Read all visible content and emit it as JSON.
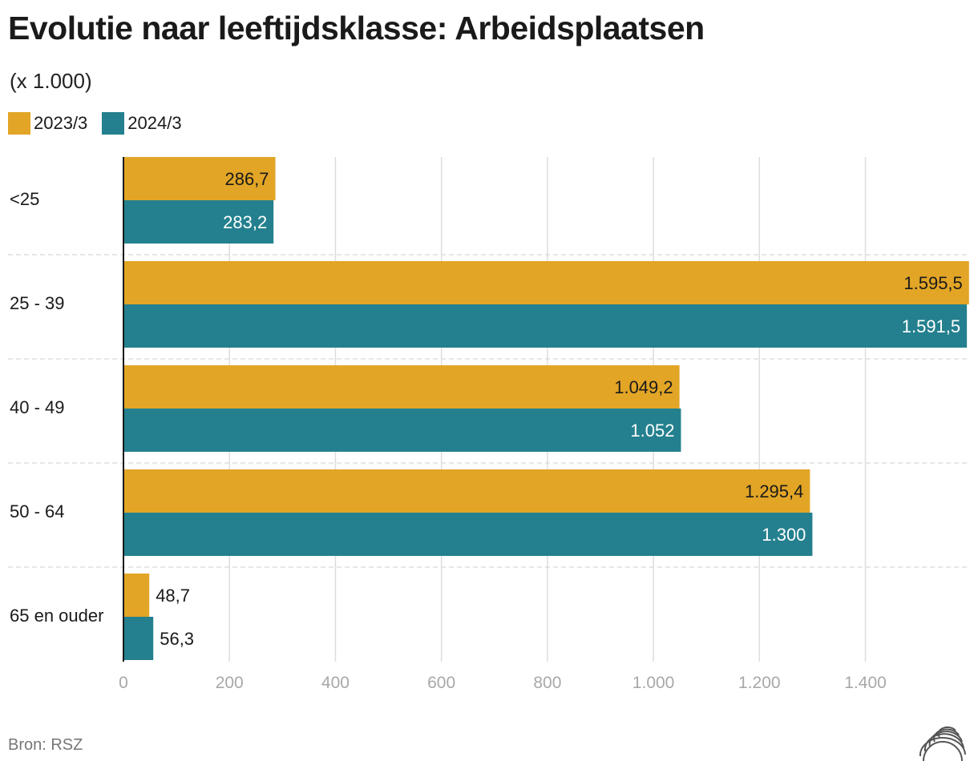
{
  "title": "Evolutie naar leeftijdsklasse: Arbeidsplaatsen",
  "subtitle": "(x 1.000)",
  "source": "Bron: RSZ",
  "colors": {
    "series_2023": "#E2A526",
    "series_2024": "#24808E",
    "grid": "#dddddd",
    "axis": "#1a1a1a"
  },
  "icons": {
    "logo": "broadcaster-logo-icon"
  },
  "chart_data": {
    "type": "bar",
    "orientation": "horizontal",
    "title": "Evolutie naar leeftijdsklasse: Arbeidsplaatsen",
    "subtitle": "(x 1.000)",
    "categories": [
      "<25",
      "25 - 39",
      "40 - 49",
      "50 - 64",
      "65 en ouder"
    ],
    "series": [
      {
        "name": "2023/3",
        "color": "#E2A526",
        "values": [
          286.7,
          1595.5,
          1049.2,
          1295.4,
          48.7
        ],
        "labels": [
          "286,7",
          "1.595,5",
          "1.049,2",
          "1.295,4",
          "48,7"
        ]
      },
      {
        "name": "2024/3",
        "color": "#24808E",
        "values": [
          283.2,
          1591.5,
          1052,
          1300,
          56.3
        ],
        "labels": [
          "283,2",
          "1.591,5",
          "1.052",
          "1.300",
          "56,3"
        ]
      }
    ],
    "xlim": [
      0,
      1600
    ],
    "xticks": [
      0,
      200,
      400,
      600,
      800,
      1000,
      1200,
      1400
    ],
    "xtick_labels": [
      "0",
      "200",
      "400",
      "600",
      "800",
      "1.000",
      "1.200",
      "1.400"
    ],
    "grid": true,
    "legend": "top-left",
    "xlabel": "",
    "ylabel": ""
  }
}
